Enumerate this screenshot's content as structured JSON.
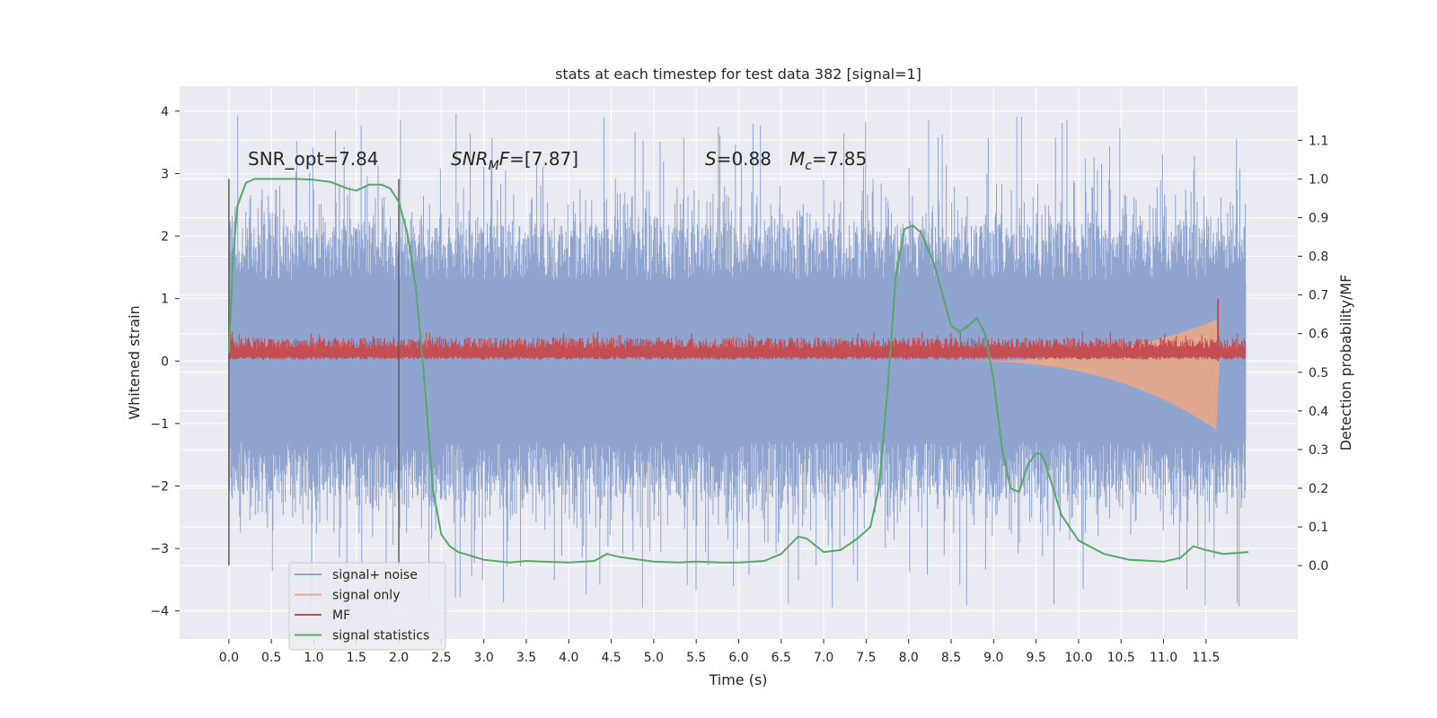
{
  "chart_data": {
    "type": "line",
    "title": "stats at each timestep for test data 382 [signal=1]",
    "xlabel": "Time (s)",
    "ylabel_left": "Whitened strain",
    "ylabel_right": "Detection probability/MF",
    "xlim": [
      -0.58,
      12.58
    ],
    "ylim_left": [
      -4.45,
      4.4
    ],
    "ylim_right": [
      -0.19,
      1.24
    ],
    "grid": true,
    "legend_position": "lower-left",
    "xticks": [
      "0.0",
      "0.5",
      "1.0",
      "1.5",
      "2.0",
      "2.5",
      "3.0",
      "3.5",
      "4.0",
      "4.5",
      "5.0",
      "5.5",
      "6.0",
      "6.5",
      "7.0",
      "7.5",
      "8.0",
      "8.5",
      "9.0",
      "9.5",
      "10.0",
      "10.5",
      "11.0",
      "11.5"
    ],
    "yticks_left": [
      4,
      3,
      2,
      1,
      0,
      -1,
      -2,
      -3,
      -4
    ],
    "yticks_left_labels": [
      "4",
      "3",
      "2",
      "1",
      "0",
      "−1",
      "−2",
      "−3",
      "−4"
    ],
    "yticks_right": [
      0.0,
      0.1,
      0.2,
      0.3,
      0.4,
      0.5,
      0.6,
      0.7,
      0.8,
      0.9,
      1.0,
      1.1
    ],
    "yticks_right_labels": [
      "0.0",
      "0.1",
      "0.2",
      "0.3",
      "0.4",
      "0.5",
      "0.6",
      "0.7",
      "0.8",
      "0.9",
      "1.0",
      "1.1"
    ],
    "vlines": [
      0.0,
      2.0
    ],
    "annotations": {
      "snr_opt": "SNR_opt=7.84",
      "snr_mf_sym": "SNR",
      "snr_mf_sub": "M",
      "snr_mf_f": "F",
      "snr_mf_val": "=[7.87]",
      "s_sym": "S",
      "s_val": "=0.88",
      "mc_sym": "M",
      "mc_sub": "c",
      "mc_val": "=7.85"
    },
    "series": [
      {
        "name": "signal+ noise",
        "color": "#8fa4cf",
        "axis": "left",
        "envelope": {
          "core_abs": 1.25,
          "typical_peak": 2.6,
          "max_pos": 4.02,
          "min_neg": -4.08
        }
      },
      {
        "name": "signal only",
        "color": "#e8a887",
        "axis": "left",
        "chirp": {
          "start": 8.5,
          "peak_time": 11.62,
          "peak_amp": 1.1
        }
      },
      {
        "name": "MF",
        "color": "#c44e52",
        "axis": "left",
        "band": [
          0.02,
          0.45
        ],
        "spike": {
          "x": 11.64,
          "y": 1.0
        }
      },
      {
        "name": "signal statistics",
        "color": "#55a868",
        "axis": "right",
        "x": [
          0.0,
          0.05,
          0.1,
          0.2,
          0.3,
          0.5,
          0.8,
          1.0,
          1.2,
          1.4,
          1.5,
          1.65,
          1.8,
          1.9,
          2.0,
          2.1,
          2.2,
          2.3,
          2.4,
          2.5,
          2.6,
          2.7,
          3.0,
          3.3,
          3.5,
          3.7,
          4.0,
          4.3,
          4.45,
          4.6,
          5.0,
          5.3,
          5.5,
          5.8,
          6.0,
          6.3,
          6.5,
          6.7,
          6.8,
          7.0,
          7.2,
          7.4,
          7.55,
          7.65,
          7.75,
          7.85,
          7.95,
          8.05,
          8.15,
          8.3,
          8.4,
          8.5,
          8.6,
          8.7,
          8.8,
          8.9,
          9.0,
          9.1,
          9.2,
          9.3,
          9.4,
          9.5,
          9.55,
          9.6,
          9.7,
          9.8,
          10.0,
          10.3,
          10.6,
          11.0,
          11.2,
          11.35,
          11.5,
          11.7,
          12.0
        ],
        "y": [
          0.55,
          0.8,
          0.93,
          0.99,
          1.0,
          1.0,
          1.0,
          0.998,
          0.992,
          0.975,
          0.97,
          0.985,
          0.985,
          0.975,
          0.94,
          0.86,
          0.72,
          0.48,
          0.2,
          0.08,
          0.05,
          0.035,
          0.015,
          0.008,
          0.012,
          0.01,
          0.008,
          0.012,
          0.03,
          0.022,
          0.01,
          0.008,
          0.01,
          0.008,
          0.008,
          0.012,
          0.03,
          0.075,
          0.07,
          0.035,
          0.04,
          0.07,
          0.1,
          0.2,
          0.45,
          0.75,
          0.87,
          0.88,
          0.86,
          0.78,
          0.7,
          0.62,
          0.605,
          0.62,
          0.64,
          0.6,
          0.48,
          0.3,
          0.2,
          0.19,
          0.26,
          0.29,
          0.29,
          0.27,
          0.2,
          0.13,
          0.065,
          0.03,
          0.015,
          0.01,
          0.02,
          0.05,
          0.04,
          0.03,
          0.035
        ]
      }
    ]
  }
}
